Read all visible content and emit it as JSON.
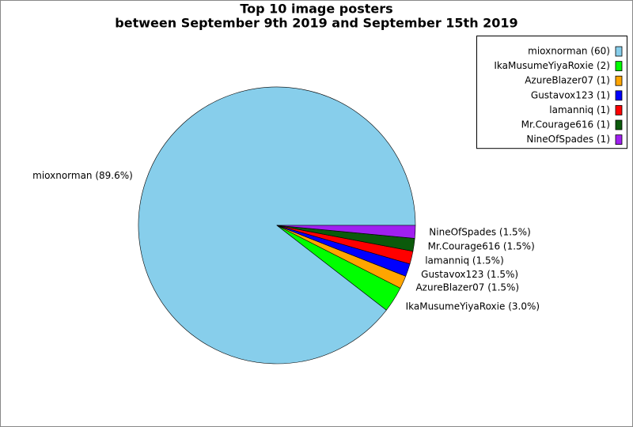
{
  "chart_data": {
    "type": "pie",
    "title": "Top 10 image posters",
    "subtitle": "between September 9th 2019 and September 15th 2019",
    "values": [
      89.6,
      3.0,
      1.5,
      1.5,
      1.5,
      1.5,
      1.5
    ],
    "value_labels": [
      "mioxnorman (89.6%)",
      "IkaMusumeYiyaRoxie (3.0%)",
      "AzureBlazer07 (1.5%)",
      "Gustavox123 (1.5%)",
      "lamanniq (1.5%)",
      "Mr.Courage616 (1.5%)",
      "NineOfSpades (1.5%)"
    ],
    "legend": [
      "mioxnorman (60)",
      "IkaMusumeYiyaRoxie (2)",
      "AzureBlazer07 (1)",
      "Gustavox123 (1)",
      "lamanniq (1)",
      "Mr.Courage616 (1)",
      "NineOfSpades (1)"
    ],
    "colors": [
      "#87ceeb",
      "#00ff00",
      "#ffa500",
      "#0000ff",
      "#ff0000",
      "#0b5a0b",
      "#a020f0"
    ],
    "legend_position": "upper right"
  }
}
